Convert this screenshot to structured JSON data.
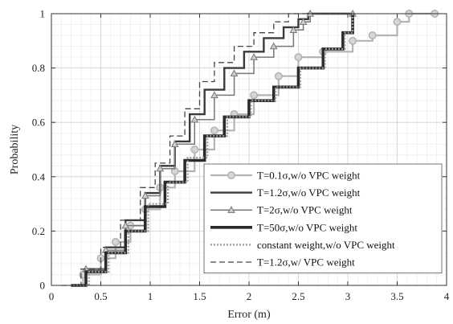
{
  "chart_data": {
    "type": "line",
    "title": "",
    "xlabel": "Error (m)",
    "ylabel": "Probability",
    "xlim": [
      0,
      4
    ],
    "ylim": [
      0,
      1
    ],
    "x_ticks": [
      "0",
      "0.5",
      "1",
      "1.5",
      "2",
      "2.5",
      "3",
      "3.5",
      "4"
    ],
    "y_ticks": [
      "0",
      "0.2",
      "0.4",
      "0.6",
      "0.8",
      "1"
    ],
    "grid": true,
    "minor_grid": true,
    "legend_position": "lower-right",
    "series": [
      {
        "name": "T=0.1σ,w/o VPC weight",
        "color": "#b4b4b4",
        "width": 2.2,
        "dash": "",
        "marker": "circle",
        "points": [
          [
            0.2,
            0
          ],
          [
            0.32,
            0.04
          ],
          [
            0.5,
            0.1
          ],
          [
            0.65,
            0.16
          ],
          [
            0.8,
            0.22
          ],
          [
            0.95,
            0.28
          ],
          [
            1.1,
            0.36
          ],
          [
            1.25,
            0.42
          ],
          [
            1.45,
            0.5
          ],
          [
            1.65,
            0.57
          ],
          [
            1.85,
            0.63
          ],
          [
            2.05,
            0.7
          ],
          [
            2.3,
            0.77
          ],
          [
            2.5,
            0.84
          ],
          [
            2.75,
            0.86
          ],
          [
            3.05,
            0.9
          ],
          [
            3.25,
            0.92
          ],
          [
            3.5,
            0.97
          ],
          [
            3.62,
            1
          ],
          [
            3.88,
            1
          ]
        ]
      },
      {
        "name": "T=1.2σ,w/o VPC weight",
        "color": "#3a3a3a",
        "width": 2.4,
        "dash": "",
        "marker": "",
        "points": [
          [
            0.2,
            0
          ],
          [
            0.35,
            0.06
          ],
          [
            0.55,
            0.14
          ],
          [
            0.75,
            0.24
          ],
          [
            0.95,
            0.34
          ],
          [
            1.1,
            0.44
          ],
          [
            1.25,
            0.53
          ],
          [
            1.4,
            0.63
          ],
          [
            1.55,
            0.72
          ],
          [
            1.75,
            0.8
          ],
          [
            1.95,
            0.86
          ],
          [
            2.15,
            0.91
          ],
          [
            2.35,
            0.95
          ],
          [
            2.5,
            0.98
          ],
          [
            2.6,
            1
          ],
          [
            3.05,
            1
          ]
        ]
      },
      {
        "name": "T=2σ,w/o VPC weight",
        "color": "#777777",
        "width": 1.5,
        "dash": "",
        "marker": "triangle",
        "points": [
          [
            0.2,
            0
          ],
          [
            0.35,
            0.06
          ],
          [
            0.55,
            0.13
          ],
          [
            0.75,
            0.22
          ],
          [
            0.95,
            0.33
          ],
          [
            1.1,
            0.43
          ],
          [
            1.25,
            0.52
          ],
          [
            1.45,
            0.61
          ],
          [
            1.65,
            0.7
          ],
          [
            1.85,
            0.78
          ],
          [
            2.05,
            0.84
          ],
          [
            2.25,
            0.88
          ],
          [
            2.45,
            0.94
          ],
          [
            2.55,
            0.97
          ],
          [
            2.62,
            1
          ],
          [
            3.05,
            1
          ]
        ]
      },
      {
        "name": "T=50σ,w/o VPC weight",
        "color": "#2a2a2a",
        "width": 3.6,
        "dash": "",
        "marker": "",
        "points": [
          [
            0.2,
            0
          ],
          [
            0.35,
            0.05
          ],
          [
            0.55,
            0.12
          ],
          [
            0.75,
            0.2
          ],
          [
            0.95,
            0.29
          ],
          [
            1.15,
            0.38
          ],
          [
            1.35,
            0.46
          ],
          [
            1.55,
            0.55
          ],
          [
            1.75,
            0.62
          ],
          [
            2,
            0.68
          ],
          [
            2.25,
            0.73
          ],
          [
            2.5,
            0.8
          ],
          [
            2.75,
            0.87
          ],
          [
            2.95,
            0.93
          ],
          [
            3.05,
            1
          ]
        ]
      },
      {
        "name": "constant weight,w/o VPC weight",
        "color": "#9a9a9a",
        "width": 2.2,
        "dash": "2,2",
        "marker": "",
        "points": [
          [
            0.22,
            0
          ],
          [
            0.38,
            0.05
          ],
          [
            0.58,
            0.12
          ],
          [
            0.78,
            0.2
          ],
          [
            0.98,
            0.3
          ],
          [
            1.18,
            0.38
          ],
          [
            1.38,
            0.47
          ],
          [
            1.58,
            0.55
          ],
          [
            1.78,
            0.62
          ],
          [
            2.02,
            0.68
          ],
          [
            2.27,
            0.73
          ],
          [
            2.52,
            0.8
          ],
          [
            2.77,
            0.87
          ],
          [
            2.97,
            0.93
          ],
          [
            3.05,
            1
          ]
        ]
      },
      {
        "name": "T=1.2σ,w/ VPC weight",
        "color": "#444444",
        "width": 1.3,
        "dash": "7,4",
        "marker": "",
        "points": [
          [
            0.1,
            0
          ],
          [
            0.3,
            0.06
          ],
          [
            0.5,
            0.14
          ],
          [
            0.7,
            0.24
          ],
          [
            0.9,
            0.36
          ],
          [
            1.05,
            0.45
          ],
          [
            1.2,
            0.55
          ],
          [
            1.35,
            0.65
          ],
          [
            1.5,
            0.75
          ],
          [
            1.65,
            0.82
          ],
          [
            1.85,
            0.88
          ],
          [
            2.05,
            0.93
          ],
          [
            2.25,
            0.97
          ],
          [
            2.4,
            1
          ],
          [
            2.6,
            1
          ]
        ]
      }
    ]
  }
}
